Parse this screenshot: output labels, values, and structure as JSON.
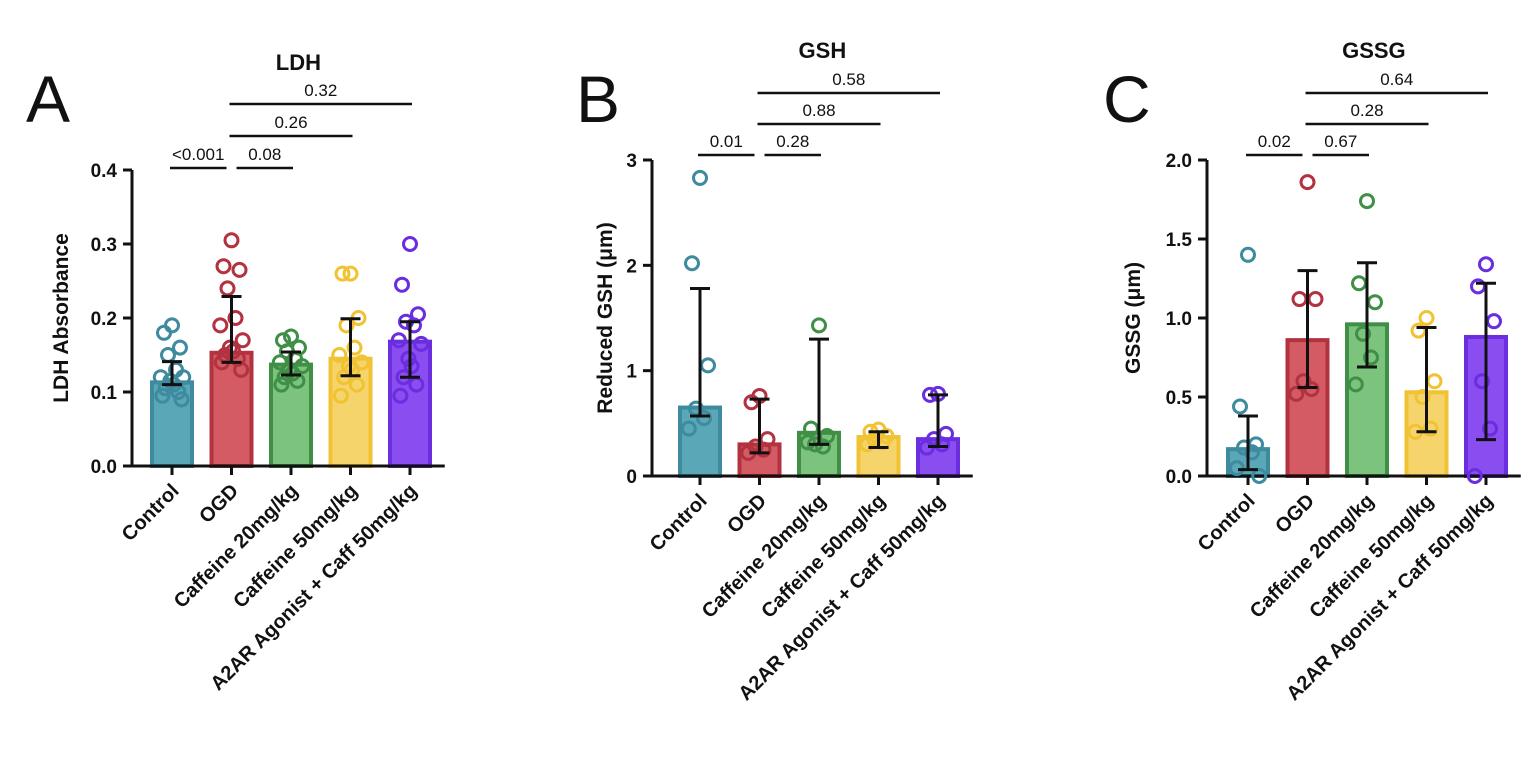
{
  "chart_data": [
    {
      "type": "bar",
      "panel": "A",
      "title": "LDH",
      "ylabel": "LDH Absorbance",
      "ylim": [
        0,
        0.4
      ],
      "yticks": [
        "0.0",
        "0.1",
        "0.2",
        "0.3",
        "0.4"
      ],
      "categories": [
        "Control",
        "OGD",
        "Caffeine 20mg/kg",
        "Caffeine 50mg/kg",
        "A2AR Agonist + Caff 50mg/kg"
      ],
      "colors": [
        {
          "fill": "#5aa7b8",
          "stroke": "#3e8a9e"
        },
        {
          "fill": "#d45b63",
          "stroke": "#b23240"
        },
        {
          "fill": "#7cc47e",
          "stroke": "#3f8f47"
        },
        {
          "fill": "#f6d46c",
          "stroke": "#f1c232"
        },
        {
          "fill": "#8a4df0",
          "stroke": "#6a2de0"
        }
      ],
      "values": [
        0.113,
        0.153,
        0.137,
        0.145,
        0.168
      ],
      "error_low": [
        0.11,
        0.14,
        0.123,
        0.122,
        0.12
      ],
      "error_high": [
        0.141,
        0.229,
        0.154,
        0.199,
        0.195
      ],
      "points": [
        [
          0.19,
          0.18,
          0.16,
          0.15,
          0.13,
          0.12,
          0.12,
          0.115,
          0.11,
          0.105,
          0.1,
          0.095,
          0.09
        ],
        [
          0.305,
          0.27,
          0.265,
          0.24,
          0.2,
          0.19,
          0.17,
          0.16,
          0.155,
          0.15,
          0.145,
          0.14,
          0.13
        ],
        [
          0.175,
          0.17,
          0.16,
          0.155,
          0.145,
          0.14,
          0.135,
          0.13,
          0.125,
          0.12,
          0.115,
          0.11
        ],
        [
          0.26,
          0.26,
          0.2,
          0.19,
          0.16,
          0.15,
          0.14,
          0.135,
          0.13,
          0.12,
          0.11,
          0.095
        ],
        [
          0.3,
          0.245,
          0.205,
          0.195,
          0.19,
          0.17,
          0.165,
          0.145,
          0.135,
          0.12,
          0.11,
          0.095
        ]
      ],
      "comparisons": [
        {
          "from": 0,
          "to": 1,
          "label": "<0.001",
          "level": 0
        },
        {
          "from": 1,
          "to": 2,
          "label": "0.08",
          "level": 0
        },
        {
          "from": 1,
          "to": 3,
          "label": "0.26",
          "level": 1
        },
        {
          "from": 1,
          "to": 4,
          "label": "0.32",
          "level": 2
        }
      ]
    },
    {
      "type": "bar",
      "panel": "B",
      "title": "GSH",
      "ylabel": "Reduced GSH (μm)",
      "ylim": [
        0,
        3
      ],
      "yticks": [
        "0",
        "1",
        "2",
        "3"
      ],
      "categories": [
        "Control",
        "OGD",
        "Caffeine 20mg/kg",
        "Caffeine 50mg/kg",
        "A2AR Agonist + Caff 50mg/kg"
      ],
      "colors": [
        {
          "fill": "#5aa7b8",
          "stroke": "#3e8a9e"
        },
        {
          "fill": "#d45b63",
          "stroke": "#b23240"
        },
        {
          "fill": "#7cc47e",
          "stroke": "#3f8f47"
        },
        {
          "fill": "#f6d46c",
          "stroke": "#f1c232"
        },
        {
          "fill": "#8a4df0",
          "stroke": "#6a2de0"
        }
      ],
      "values": [
        0.65,
        0.3,
        0.41,
        0.37,
        0.35
      ],
      "error_low": [
        0.57,
        0.22,
        0.3,
        0.27,
        0.28
      ],
      "error_high": [
        1.78,
        0.73,
        1.3,
        0.42,
        0.77
      ],
      "points": [
        [
          2.83,
          2.02,
          1.05,
          0.64,
          0.55,
          0.45
        ],
        [
          0.76,
          0.7,
          0.35,
          0.28,
          0.25,
          0.22
        ],
        [
          1.43,
          0.45,
          0.38,
          0.3,
          0.28,
          0.32
        ],
        [
          0.44,
          0.42,
          0.38,
          0.35,
          0.32,
          0.3
        ],
        [
          0.78,
          0.77,
          0.4,
          0.35,
          0.3,
          0.27
        ]
      ],
      "comparisons": [
        {
          "from": 0,
          "to": 1,
          "label": "0.01",
          "level": 0
        },
        {
          "from": 1,
          "to": 2,
          "label": "0.28",
          "level": 0
        },
        {
          "from": 1,
          "to": 3,
          "label": "0.88",
          "level": 1
        },
        {
          "from": 1,
          "to": 4,
          "label": "0.58",
          "level": 2
        }
      ]
    },
    {
      "type": "bar",
      "panel": "C",
      "title": "GSSG",
      "ylabel": "GSSG (μm)",
      "ylim": [
        0,
        2.0
      ],
      "yticks": [
        "0.0",
        "0.5",
        "1.0",
        "1.5",
        "2.0"
      ],
      "categories": [
        "Control",
        "OGD",
        "Caffeine 20mg/kg",
        "Caffeine 50mg/kg",
        "A2AR Agonist + Caff 50mg/kg"
      ],
      "colors": [
        {
          "fill": "#5aa7b8",
          "stroke": "#3e8a9e"
        },
        {
          "fill": "#d45b63",
          "stroke": "#b23240"
        },
        {
          "fill": "#7cc47e",
          "stroke": "#3f8f47"
        },
        {
          "fill": "#f6d46c",
          "stroke": "#f1c232"
        },
        {
          "fill": "#8a4df0",
          "stroke": "#6a2de0"
        }
      ],
      "values": [
        0.17,
        0.86,
        0.96,
        0.53,
        0.88
      ],
      "error_low": [
        0.04,
        0.56,
        0.69,
        0.28,
        0.23
      ],
      "error_high": [
        0.38,
        1.3,
        1.35,
        0.94,
        1.22
      ],
      "points": [
        [
          1.4,
          0.44,
          0.2,
          0.18,
          0.15,
          0.05,
          0.0
        ],
        [
          1.86,
          1.12,
          1.12,
          0.6,
          0.55,
          0.52
        ],
        [
          1.74,
          1.22,
          1.1,
          0.9,
          0.75,
          0.58
        ],
        [
          1.0,
          0.92,
          0.6,
          0.5,
          0.3,
          0.28
        ],
        [
          1.34,
          1.2,
          0.98,
          0.6,
          0.3,
          0.0
        ]
      ],
      "comparisons": [
        {
          "from": 0,
          "to": 1,
          "label": "0.02",
          "level": 0
        },
        {
          "from": 1,
          "to": 2,
          "label": "0.67",
          "level": 0
        },
        {
          "from": 1,
          "to": 3,
          "label": "0.28",
          "level": 1
        },
        {
          "from": 1,
          "to": 4,
          "label": "0.64",
          "level": 2
        }
      ]
    }
  ]
}
